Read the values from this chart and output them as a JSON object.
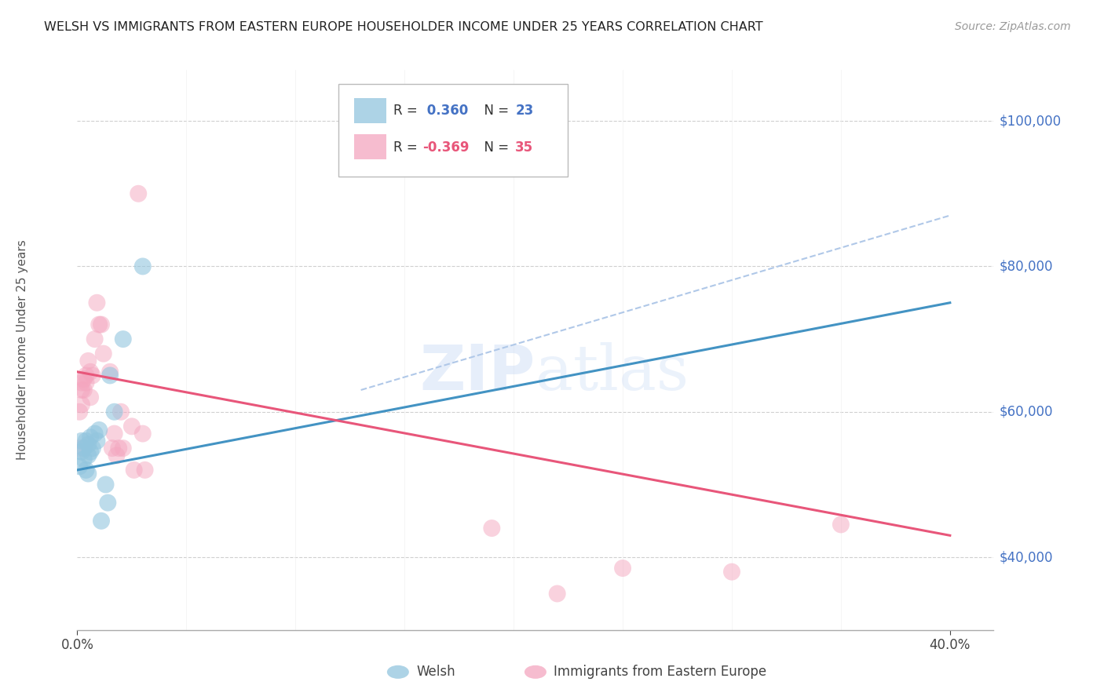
{
  "title": "WELSH VS IMMIGRANTS FROM EASTERN EUROPE HOUSEHOLDER INCOME UNDER 25 YEARS CORRELATION CHART",
  "source": "Source: ZipAtlas.com",
  "ylabel": "Householder Income Under 25 years",
  "xlim": [
    0.0,
    0.42
  ],
  "ylim": [
    30000,
    107000
  ],
  "welsh_color": "#92c5de",
  "immigrant_color": "#f4a6bf",
  "welsh_trend_color": "#4393c3",
  "immigrant_trend_color": "#e8567a",
  "dashed_color": "#b0c8e8",
  "watermark": "ZIPatlas",
  "welsh_points": [
    [
      0.001,
      52500
    ],
    [
      0.002,
      54500
    ],
    [
      0.002,
      56000
    ],
    [
      0.003,
      55000
    ],
    [
      0.003,
      53500
    ],
    [
      0.004,
      56000
    ],
    [
      0.004,
      52000
    ],
    [
      0.005,
      54000
    ],
    [
      0.005,
      51500
    ],
    [
      0.005,
      55500
    ],
    [
      0.006,
      56500
    ],
    [
      0.006,
      54500
    ],
    [
      0.007,
      55000
    ],
    [
      0.008,
      57000
    ],
    [
      0.009,
      56000
    ],
    [
      0.01,
      57500
    ],
    [
      0.011,
      45000
    ],
    [
      0.013,
      50000
    ],
    [
      0.014,
      47500
    ],
    [
      0.015,
      65000
    ],
    [
      0.017,
      60000
    ],
    [
      0.021,
      70000
    ],
    [
      0.03,
      80000
    ]
  ],
  "immigrant_points": [
    [
      0.001,
      55000
    ],
    [
      0.001,
      60000
    ],
    [
      0.002,
      64000
    ],
    [
      0.002,
      63000
    ],
    [
      0.002,
      61000
    ],
    [
      0.003,
      64500
    ],
    [
      0.003,
      63000
    ],
    [
      0.004,
      65000
    ],
    [
      0.004,
      64000
    ],
    [
      0.005,
      67000
    ],
    [
      0.006,
      65500
    ],
    [
      0.006,
      62000
    ],
    [
      0.007,
      65000
    ],
    [
      0.008,
      70000
    ],
    [
      0.009,
      75000
    ],
    [
      0.01,
      72000
    ],
    [
      0.011,
      72000
    ],
    [
      0.012,
      68000
    ],
    [
      0.015,
      65500
    ],
    [
      0.016,
      55000
    ],
    [
      0.017,
      57000
    ],
    [
      0.018,
      54000
    ],
    [
      0.019,
      55000
    ],
    [
      0.02,
      60000
    ],
    [
      0.021,
      55000
    ],
    [
      0.025,
      58000
    ],
    [
      0.026,
      52000
    ],
    [
      0.028,
      90000
    ],
    [
      0.03,
      57000
    ],
    [
      0.031,
      52000
    ],
    [
      0.19,
      44000
    ],
    [
      0.22,
      35000
    ],
    [
      0.25,
      38500
    ],
    [
      0.3,
      38000
    ],
    [
      0.35,
      44500
    ]
  ],
  "welsh_trend": [
    0.0,
    0.4,
    52000,
    75000
  ],
  "immigrant_trend": [
    0.0,
    0.4,
    65500,
    43000
  ],
  "dashed_line": [
    0.13,
    0.4,
    63000,
    87000
  ],
  "background_color": "#ffffff",
  "grid_color": "#d0d0d0",
  "title_color": "#222222",
  "ytick_color": "#4472c4",
  "xtick_color": "#444444"
}
